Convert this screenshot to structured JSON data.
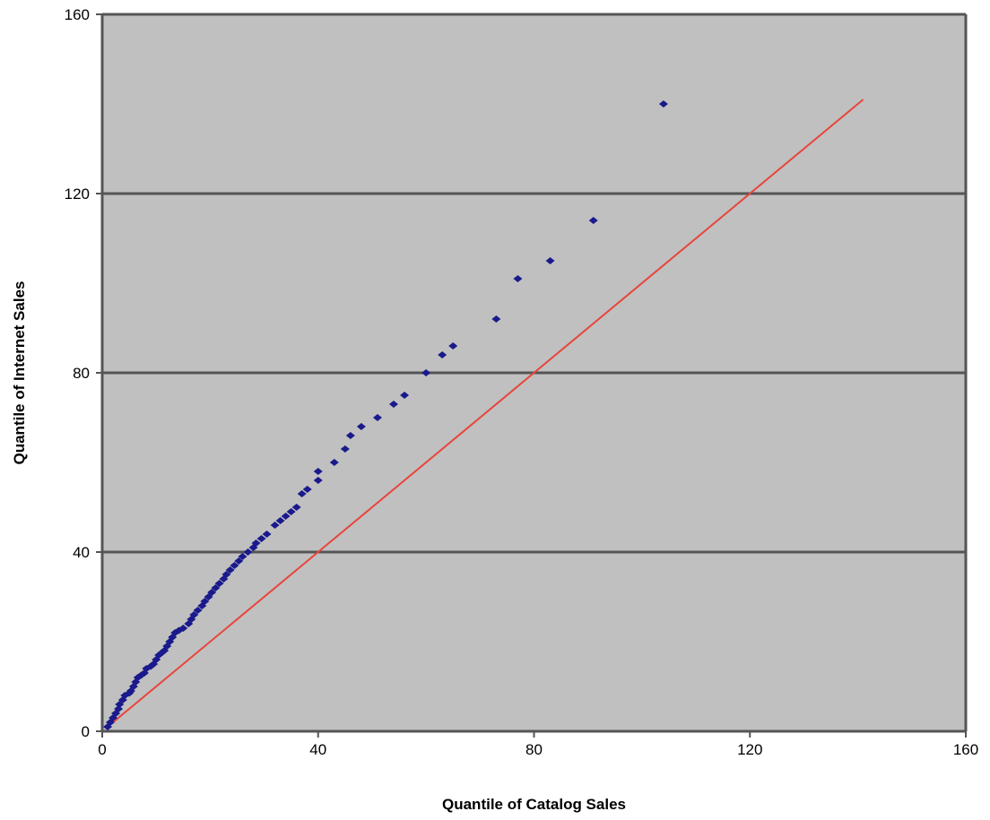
{
  "chart_data": {
    "type": "scatter",
    "title": "",
    "xlabel": "Quantile of Catalog Sales",
    "ylabel": "Quantile of Internet Sales",
    "xlim": [
      0,
      160
    ],
    "ylim": [
      0,
      160
    ],
    "xticks": [
      0,
      40,
      80,
      120,
      160
    ],
    "yticks": [
      0,
      40,
      80,
      120,
      160
    ],
    "grid": "horizontal",
    "background_color": "#c0c0c0",
    "gridline_color": "#555555",
    "point_color": "#1a1a8c",
    "reference_line_color": "#e8453c",
    "reference_line": {
      "x": [
        2,
        141
      ],
      "y": [
        2,
        141
      ]
    },
    "points": [
      [
        1,
        1
      ],
      [
        1.5,
        2
      ],
      [
        2,
        3
      ],
      [
        2.5,
        4
      ],
      [
        3,
        5
      ],
      [
        3.2,
        6
      ],
      [
        3.8,
        7
      ],
      [
        4.2,
        8
      ],
      [
        5,
        8.5
      ],
      [
        5.3,
        9
      ],
      [
        5.8,
        10
      ],
      [
        6.2,
        11
      ],
      [
        6.6,
        12
      ],
      [
        7.2,
        12.5
      ],
      [
        7.8,
        13
      ],
      [
        8.2,
        14
      ],
      [
        9,
        14.5
      ],
      [
        9.5,
        15
      ],
      [
        10,
        16
      ],
      [
        10.5,
        17
      ],
      [
        11,
        17.5
      ],
      [
        11.5,
        18
      ],
      [
        12,
        19
      ],
      [
        12.5,
        20
      ],
      [
        13,
        21
      ],
      [
        13.5,
        22
      ],
      [
        14.2,
        22.5
      ],
      [
        15,
        23
      ],
      [
        16,
        24
      ],
      [
        16.5,
        25
      ],
      [
        17,
        26
      ],
      [
        17.7,
        27
      ],
      [
        18.5,
        28
      ],
      [
        19,
        29
      ],
      [
        19.7,
        30
      ],
      [
        20.3,
        31
      ],
      [
        21,
        32
      ],
      [
        21.7,
        33
      ],
      [
        22.5,
        34
      ],
      [
        23,
        35
      ],
      [
        23.7,
        36
      ],
      [
        24.5,
        37
      ],
      [
        25.3,
        38
      ],
      [
        26,
        39
      ],
      [
        27,
        40
      ],
      [
        28,
        41
      ],
      [
        28.5,
        42
      ],
      [
        29.5,
        43
      ],
      [
        30.5,
        44
      ],
      [
        32,
        46
      ],
      [
        33,
        47
      ],
      [
        34,
        48
      ],
      [
        35,
        49
      ],
      [
        36,
        50
      ],
      [
        37,
        53
      ],
      [
        38,
        54
      ],
      [
        40,
        56
      ],
      [
        40,
        58
      ],
      [
        43,
        60
      ],
      [
        45,
        63
      ],
      [
        46,
        66
      ],
      [
        48,
        68
      ],
      [
        51,
        70
      ],
      [
        54,
        73
      ],
      [
        56,
        75
      ],
      [
        60,
        80
      ],
      [
        63,
        84
      ],
      [
        65,
        86
      ],
      [
        73,
        92
      ],
      [
        77,
        101
      ],
      [
        83,
        105
      ],
      [
        91,
        114
      ],
      [
        104,
        140
      ]
    ]
  }
}
